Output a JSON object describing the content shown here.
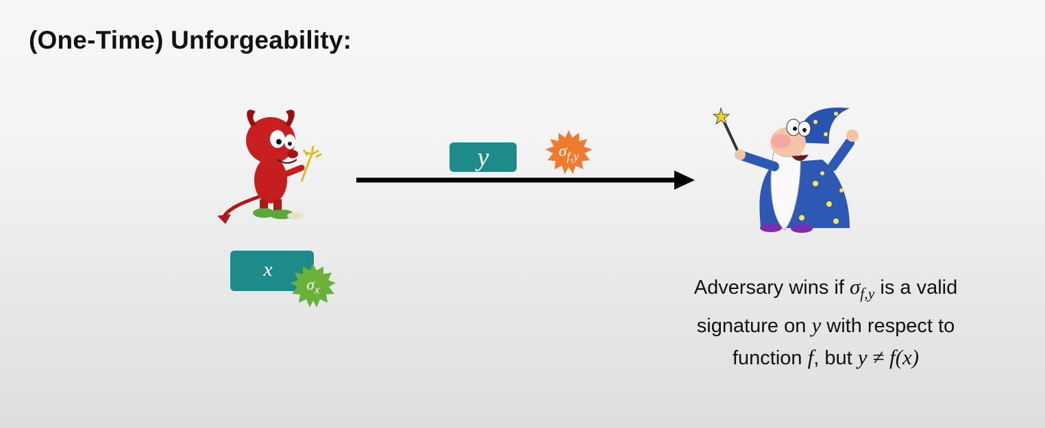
{
  "slide": {
    "title": "(One-Time) Unforgeability:"
  },
  "colors": {
    "teal": "#1f8a8a",
    "green_seal": "#6ab13a",
    "orange_seal": "#f07a30"
  },
  "sent_message": {
    "label": "y",
    "signature_symbol": "σ",
    "signature_subscript": "f,y"
  },
  "adversary_input": {
    "label": "x",
    "signature_symbol": "σ",
    "signature_subscript": "x"
  },
  "figures": {
    "adversary": "devil-icon",
    "verifier": "wizard-icon"
  },
  "caption": {
    "t1": "Adversary wins if ",
    "m1": "σ",
    "m1_sub": "f,y",
    "t2": " is a valid",
    "t3": "signature on ",
    "m2": "y",
    "t4": " with respect to",
    "t5": "function ",
    "m3": "f",
    "t6": ", but ",
    "m4": "y ≠ f(x)"
  }
}
